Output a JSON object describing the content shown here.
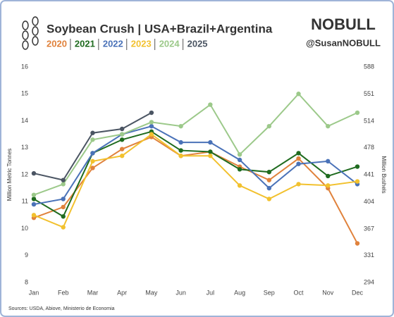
{
  "chart_data": {
    "type": "line",
    "title": "Soybean Crush | USA+Brazil+Argentina",
    "brand": "NOBULL",
    "handle": "@SusanNOBULL",
    "source": "Sources: USDA, Abiove, Ministerio de Economia",
    "ylabel": "Million Metric Tonnes",
    "y2label": "Million Bushels",
    "categories": [
      "Jan",
      "Feb",
      "Mar",
      "Apr",
      "May",
      "Jun",
      "Jul",
      "Aug",
      "Sep",
      "Oct",
      "Nov",
      "Dec"
    ],
    "ylim": [
      8,
      16
    ],
    "yticks": [
      8,
      9,
      10,
      11,
      12,
      13,
      14,
      15,
      16
    ],
    "y2lim": [
      294,
      588
    ],
    "y2ticks": [
      294,
      331,
      367,
      404,
      441,
      478,
      514,
      551,
      588
    ],
    "grid": false,
    "series": [
      {
        "name": "2020",
        "color": "#e0823c",
        "values": [
          10.4,
          10.8,
          12.25,
          12.95,
          13.4,
          12.7,
          12.85,
          12.3,
          11.8,
          12.6,
          11.5,
          9.45
        ]
      },
      {
        "name": "2021",
        "color": "#1f6b1f",
        "values": [
          11.1,
          10.45,
          12.8,
          13.3,
          13.6,
          12.9,
          12.85,
          12.2,
          12.1,
          12.8,
          11.95,
          12.3
        ]
      },
      {
        "name": "2022",
        "color": "#4a72b8",
        "values": [
          10.9,
          11.1,
          12.8,
          13.5,
          13.8,
          13.2,
          13.2,
          12.55,
          11.5,
          12.4,
          12.5,
          11.65
        ]
      },
      {
        "name": "2023",
        "color": "#f2c12e",
        "values": [
          10.5,
          10.05,
          12.5,
          12.7,
          13.5,
          12.7,
          12.7,
          11.6,
          11.1,
          11.65,
          11.6,
          11.75
        ]
      },
      {
        "name": "2024",
        "color": "#9cc98a",
        "values": [
          11.25,
          11.65,
          13.3,
          13.5,
          13.95,
          13.8,
          14.6,
          12.75,
          13.8,
          15.0,
          13.8,
          14.3
        ]
      },
      {
        "name": "2025",
        "color": "#4b5563",
        "values": [
          12.05,
          11.8,
          13.55,
          13.7,
          14.3,
          null,
          null,
          null,
          null,
          null,
          null,
          null
        ]
      }
    ]
  }
}
